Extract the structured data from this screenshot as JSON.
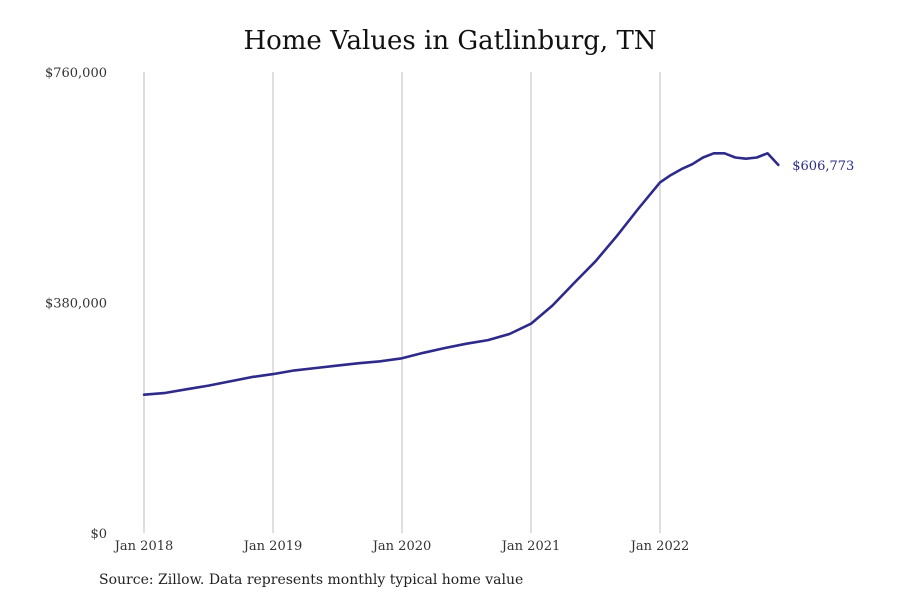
{
  "colors": {
    "line": "#2e2a8a",
    "grid": "#bfbfbf",
    "label": "#2e2a8a"
  },
  "source": "Source: Zillow. Data represents monthly typical home value",
  "chart_data": {
    "type": "line",
    "title": "Home Values in Gatlinburg, TN",
    "xlabel": "",
    "ylabel": "",
    "ylim": [
      0,
      760000
    ],
    "y_ticks": [
      {
        "value": 0,
        "label": "$0"
      },
      {
        "value": 380000,
        "label": "$380,000"
      },
      {
        "value": 760000,
        "label": "$760,000"
      }
    ],
    "x_ticks": [
      {
        "value": "2018-01",
        "label": "Jan 2018"
      },
      {
        "value": "2019-01",
        "label": "Jan 2019"
      },
      {
        "value": "2020-01",
        "label": "Jan 2020"
      },
      {
        "value": "2021-01",
        "label": "Jan 2021"
      },
      {
        "value": "2022-01",
        "label": "Jan 2022"
      }
    ],
    "grid": "vertical",
    "end_label": "$606,773",
    "series": [
      {
        "x": [
          "2018-01",
          "2018-03",
          "2018-05",
          "2018-07",
          "2018-09",
          "2018-11",
          "2019-01",
          "2019-03",
          "2019-05",
          "2019-07",
          "2019-09",
          "2019-11",
          "2020-01",
          "2020-03",
          "2020-05",
          "2020-07",
          "2020-09",
          "2020-11",
          "2021-01",
          "2021-03",
          "2021-05",
          "2021-07",
          "2021-09",
          "2021-11",
          "2022-01",
          "2022-02",
          "2022-03",
          "2022-04",
          "2022-05",
          "2022-06",
          "2022-07",
          "2022-08",
          "2022-09",
          "2022-10",
          "2022-11",
          "2022-12"
        ],
        "y": [
          228000,
          231000,
          237000,
          243000,
          250000,
          257000,
          262000,
          268000,
          272000,
          276000,
          280000,
          283000,
          288000,
          297000,
          305000,
          312000,
          318000,
          328000,
          345000,
          375000,
          412000,
          448000,
          490000,
          535000,
          578000,
          590000,
          600000,
          608000,
          619000,
          626000,
          626000,
          619000,
          617000,
          619000,
          626000,
          606773
        ]
      }
    ]
  }
}
